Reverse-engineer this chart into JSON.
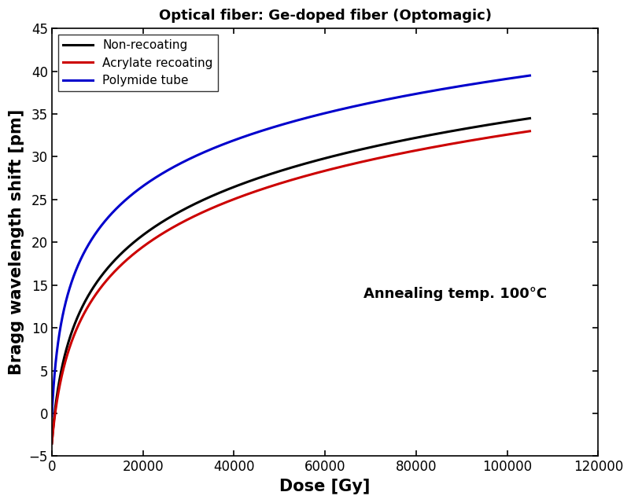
{
  "title": "Optical fiber: Ge-doped fiber (Optomagic)",
  "xlabel": "Dose [Gy]",
  "ylabel": "Bragg wavelength shift [pm]",
  "annotation": "Annealing temp. 100°C",
  "xlim": [
    0,
    120000
  ],
  "ylim": [
    -5,
    45
  ],
  "xticks": [
    0,
    20000,
    40000,
    60000,
    80000,
    100000,
    120000
  ],
  "yticks": [
    -5,
    0,
    5,
    10,
    15,
    20,
    25,
    30,
    35,
    40,
    45
  ],
  "curves": [
    {
      "label": "Non-recoating",
      "color": "#000000",
      "start_y": -3.5,
      "end_y": 34.5,
      "steepness": 1200
    },
    {
      "label": "Acrylate recoating",
      "color": "#cc0000",
      "start_y": -3.5,
      "end_y": 33.0,
      "steepness": 1400
    },
    {
      "label": "Polymide tube",
      "color": "#0000cc",
      "start_y": -0.3,
      "end_y": 39.5,
      "steepness": 700
    }
  ],
  "legend_loc": "upper left",
  "title_fontsize": 13,
  "label_fontsize": 15,
  "tick_fontsize": 12,
  "annotation_fontsize": 13,
  "linewidth": 2.2
}
